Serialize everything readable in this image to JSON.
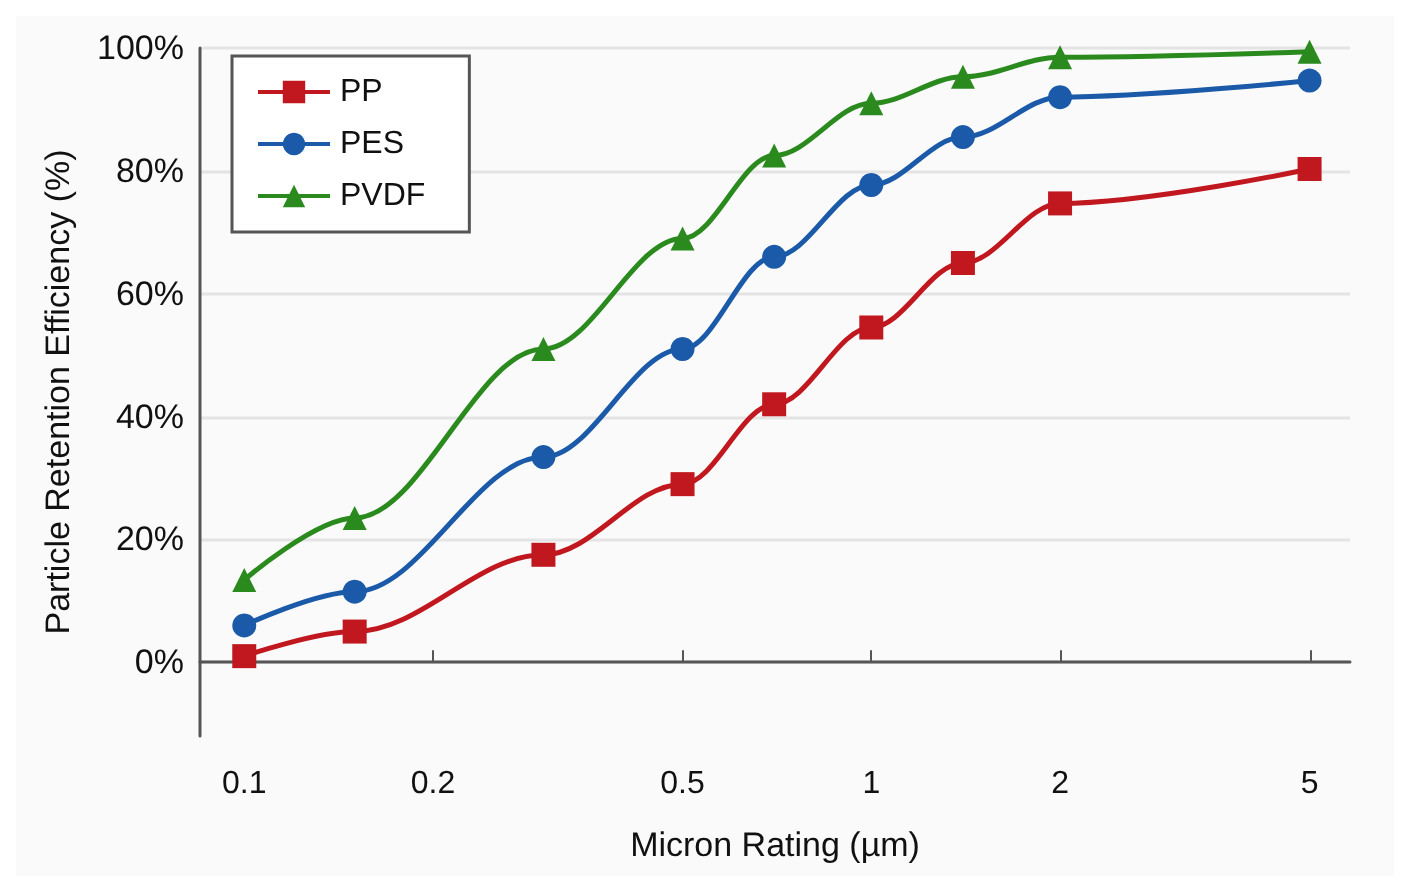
{
  "chart_data": {
    "type": "line",
    "xlabel": "Micron Rating (µm)",
    "ylabel": "Particle Retention Efficiency (%)",
    "x": [
      0.1,
      0.15,
      0.3,
      0.5,
      0.7,
      1,
      1.4,
      2,
      5
    ],
    "series": [
      {
        "name": "PP",
        "color": "#c0181e",
        "marker": "square",
        "values": [
          1,
          5,
          17.5,
          29,
          42,
          54.5,
          65,
          74.7,
          80.3
        ]
      },
      {
        "name": "PES",
        "color": "#1a5aa8",
        "marker": "circle",
        "values": [
          6,
          11.5,
          33.4,
          51,
          66,
          77.7,
          85.5,
          92,
          94.7
        ]
      },
      {
        "name": "PVDF",
        "color": "#2a8a1e",
        "marker": "triangle",
        "values": [
          13.4,
          23.5,
          51,
          69,
          82.5,
          91,
          95.3,
          98.5,
          99.4
        ]
      }
    ],
    "log": "x",
    "xlim": [
      0.085,
      5.8
    ],
    "xticks": [
      0.1,
      0.2,
      0.5,
      1,
      2,
      5
    ],
    "ylim": [
      -12,
      100
    ],
    "yticks": [
      {
        "value": 0,
        "label": "0%"
      },
      {
        "value": 20,
        "label": "20%"
      },
      {
        "value": 40,
        "label": "40%"
      },
      {
        "value": 60,
        "label": "60%"
      },
      {
        "value": 80,
        "label": "80%"
      },
      {
        "value": 100,
        "label": "100%"
      }
    ],
    "grid": "y",
    "legend": "top left",
    "line_style": "solid"
  }
}
